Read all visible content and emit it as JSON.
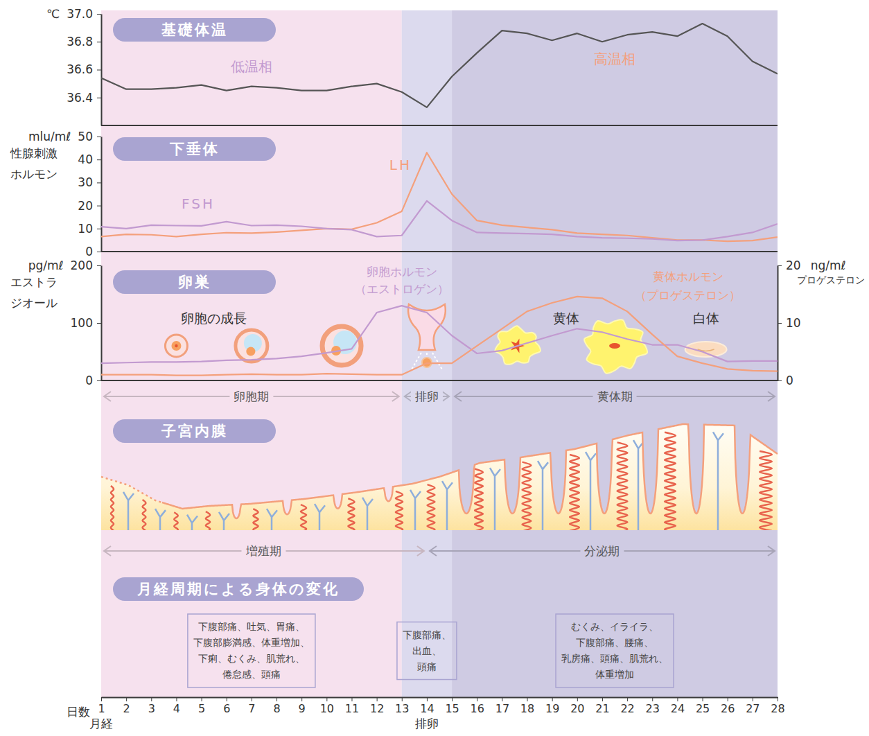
{
  "chart_data": [
    {
      "type": "line",
      "title": "基礎体温",
      "y_unit": "℃",
      "x": [
        1,
        2,
        3,
        4,
        5,
        6,
        7,
        8,
        9,
        10,
        11,
        12,
        13,
        14,
        15,
        16,
        17,
        18,
        19,
        20,
        21,
        22,
        23,
        24,
        25,
        26,
        27,
        28
      ],
      "xlim": [
        1,
        28
      ],
      "ylim": [
        36.2,
        37.0
      ],
      "yticks": [
        {
          "value": 37.0,
          "label": "37.0"
        },
        36.8,
        36.6,
        36.4
      ],
      "tick_labels": "y",
      "series": [
        {
          "color": "#555555",
          "values": [
            36.54,
            36.46,
            36.46,
            36.47,
            36.49,
            36.45,
            36.48,
            36.47,
            36.45,
            36.45,
            36.48,
            36.5,
            36.44,
            36.33,
            36.55,
            36.72,
            36.88,
            36.86,
            36.81,
            36.86,
            36.8,
            36.85,
            36.87,
            36.84,
            36.93,
            36.84,
            36.66,
            36.57
          ]
        }
      ],
      "annotations": [
        {
          "label": "低温相",
          "color": "#c39ad0"
        },
        {
          "label": "高温相",
          "color": "#f4a07c"
        }
      ]
    },
    {
      "type": "line",
      "title": "下垂体",
      "y_unit": "mlu/mℓ",
      "ylabel": "性腺刺激ホルモン",
      "x": [
        1,
        2,
        3,
        4,
        5,
        6,
        7,
        8,
        9,
        10,
        11,
        12,
        13,
        14,
        15,
        16,
        17,
        18,
        19,
        20,
        21,
        22,
        23,
        24,
        25,
        26,
        27,
        28
      ],
      "xlim": [
        1,
        28
      ],
      "ylim": [
        0,
        50
      ],
      "yticks": [
        0,
        10,
        20,
        30,
        40,
        50
      ],
      "tick_labels": "y",
      "series": [
        {
          "name": "LH",
          "color": "#f4a07c",
          "values": [
            6.5,
            7.5,
            7.3,
            6.5,
            7.5,
            8.2,
            8,
            8.5,
            9.2,
            10,
            9.7,
            12.5,
            17.5,
            43,
            25,
            13.5,
            11.5,
            10.5,
            9.5,
            8,
            7.5,
            7,
            6,
            5,
            5,
            4.5,
            4.8,
            6.3
          ]
        },
        {
          "name": "FSH",
          "color": "#c29ad0",
          "values": [
            10.8,
            10,
            11.5,
            11.3,
            11.2,
            13,
            11.3,
            11.5,
            11,
            10,
            9.5,
            6.5,
            7,
            22,
            13.5,
            8.3,
            8,
            7.8,
            7.5,
            6.5,
            6,
            5.8,
            5.5,
            4.8,
            5,
            6.5,
            8.3,
            12
          ]
        }
      ]
    },
    {
      "type": "line",
      "title": "卵巣",
      "y_unit": "pg/mℓ",
      "ylabel": "エストラジオール",
      "y2_unit": "ng/mℓ",
      "y2label": "プロゲステロン",
      "x": [
        1,
        2,
        3,
        4,
        5,
        6,
        7,
        8,
        9,
        10,
        11,
        12,
        13,
        14,
        15,
        16,
        17,
        18,
        19,
        20,
        21,
        22,
        23,
        24,
        25,
        26,
        27,
        28
      ],
      "xlim": [
        1,
        28
      ],
      "ylim": [
        0,
        200
      ],
      "yticks": [
        0,
        100,
        200
      ],
      "y2lim": [
        0,
        20
      ],
      "y2ticks": [
        0,
        10,
        20
      ],
      "tick_labels": "y",
      "series": [
        {
          "name": "卵胞ホルモン（エストロゲン）",
          "color": "#c29ad0",
          "values": [
            30,
            31,
            32,
            32,
            33,
            35,
            36,
            38,
            42,
            48,
            55,
            118,
            130,
            118,
            78,
            47,
            52,
            65,
            78,
            90,
            84,
            72,
            62,
            62,
            50,
            33,
            34,
            34
          ]
        },
        {
          "name": "黄体ホルモン（プロゲステロン）",
          "color": "#f4a07c",
          "axis": "y2",
          "values": [
            1,
            1,
            1,
            0.9,
            0.9,
            1,
            1.1,
            1,
            1,
            1.2,
            1.1,
            1,
            1,
            3,
            3,
            6,
            9,
            12,
            13.5,
            14.6,
            14.3,
            12,
            8,
            4.2,
            3,
            2,
            1.7,
            1.6
          ]
        }
      ],
      "annotations": [
        {
          "label": "卵胞の成長"
        },
        {
          "label": "黄体"
        },
        {
          "label": "白体"
        }
      ]
    }
  ],
  "x_axis": {
    "label": "日数",
    "xlim": [
      1,
      28
    ],
    "xticks": [
      1,
      2,
      3,
      4,
      5,
      6,
      7,
      8,
      9,
      10,
      11,
      12,
      13,
      14,
      15,
      16,
      17,
      18,
      19,
      20,
      21,
      22,
      23,
      24,
      25,
      26,
      27,
      28
    ],
    "annotations": [
      {
        "x": 1,
        "label": "月経"
      },
      {
        "x": 14,
        "label": "排卵"
      }
    ]
  },
  "ovary_phases": [
    {
      "label": "卵胞期",
      "start": 1,
      "end": 13,
      "color": "#f6e1ee"
    },
    {
      "label": "排卵",
      "start": 13,
      "end": 15,
      "color": "#dcdaee"
    },
    {
      "label": "黄体期",
      "start": 15,
      "end": 28,
      "color": "#cfcbe3"
    }
  ],
  "endometrium": {
    "title": "子宮内膜",
    "phases": [
      {
        "label": "増殖期",
        "start": 1,
        "end": 14
      },
      {
        "label": "分泌期",
        "start": 14,
        "end": 28
      }
    ]
  },
  "symptoms": {
    "title": "月経周期による身体の変化",
    "groups": [
      {
        "lines": [
          "下腹部痛、吐気、胃痛、",
          "下腹部膨満感、体重増加、",
          "下痢、むくみ、肌荒れ、",
          "倦怠感、頭痛"
        ]
      },
      {
        "lines": [
          "下腹部痛、",
          "出血、",
          "頭痛"
        ]
      },
      {
        "lines": [
          "むくみ、イライラ、",
          "下腹部痛、腰痛、",
          "乳房痛、頭痛、肌荒れ、",
          "体重増加"
        ]
      }
    ]
  }
}
